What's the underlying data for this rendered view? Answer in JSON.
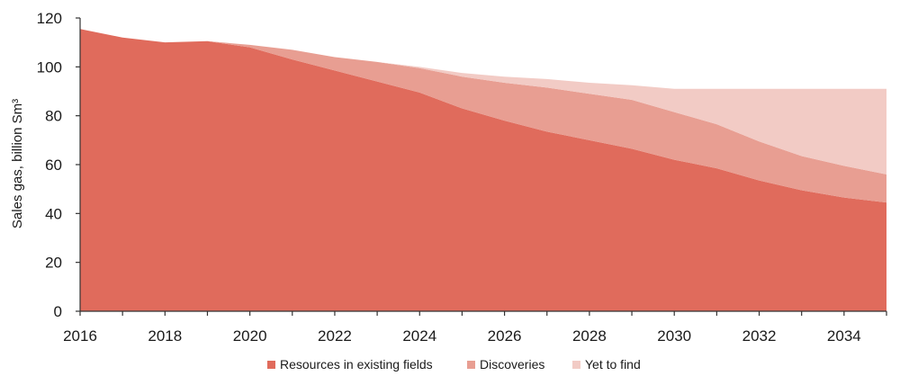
{
  "chart_data": {
    "type": "area",
    "stacked": true,
    "x": [
      2016,
      2017,
      2018,
      2019,
      2020,
      2021,
      2022,
      2023,
      2024,
      2025,
      2026,
      2027,
      2028,
      2029,
      2030,
      2031,
      2032,
      2033,
      2034,
      2035
    ],
    "series": [
      {
        "name": "Resources in existing fields",
        "color": "#e06b5c",
        "values": [
          115.5,
          112,
          110,
          110.5,
          108,
          103,
          98.5,
          94,
          89.5,
          83,
          78,
          73.5,
          70,
          66.5,
          62,
          58.5,
          53.5,
          49.5,
          46.5,
          44.5
        ]
      },
      {
        "name": "Discoveries",
        "color": "#e89e92",
        "values": [
          0,
          0,
          0,
          0,
          1,
          4,
          5.5,
          8,
          10,
          13,
          15.5,
          18,
          19,
          20,
          19.5,
          18,
          16,
          14,
          13,
          11.5
        ]
      },
      {
        "name": "Yet to find",
        "color": "#f2cbc5",
        "values": [
          0,
          0,
          0,
          0,
          0,
          0,
          0,
          0,
          0.5,
          1.5,
          2.5,
          3.5,
          4.5,
          6,
          9.5,
          14.5,
          21.5,
          27.5,
          31.5,
          35
        ]
      }
    ],
    "xlim": [
      2016,
      2035
    ],
    "ylim": [
      0,
      120
    ],
    "x_ticks": [
      "2016",
      "2018",
      "2020",
      "2022",
      "2024",
      "2026",
      "2028",
      "2030",
      "2032",
      "2034"
    ],
    "y_ticks": [
      "0",
      "20",
      "40",
      "60",
      "80",
      "100",
      "120"
    ],
    "ylabel": "Sales gas, billion Sm³",
    "xlabel": "",
    "grid": false,
    "legend_position": "bottom-center"
  }
}
